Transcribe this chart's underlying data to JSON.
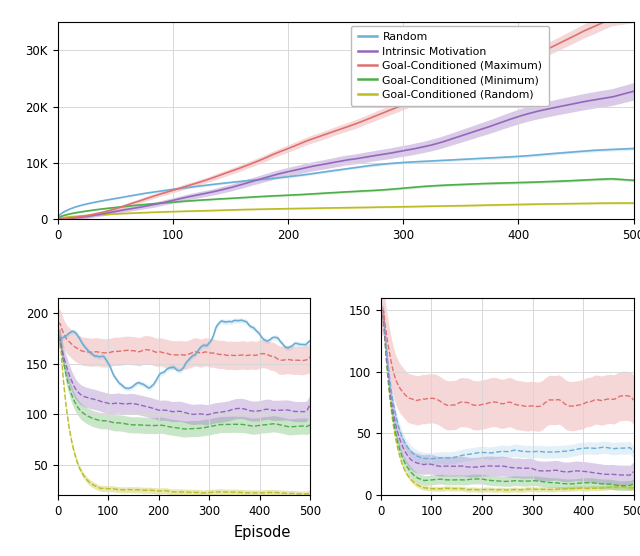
{
  "colors": {
    "random": "#6baed6",
    "intrinsic": "#9467bd",
    "gc_max": "#e07070",
    "gc_min": "#4daf4a",
    "gc_rand": "#bcbd22"
  },
  "legend_labels": [
    "Random",
    "Intrinsic Motivation",
    "Goal-Conditioned (Maximum)",
    "Goal-Conditioned (Minimum)",
    "Goal-Conditioned (Random)"
  ],
  "top_plot": {
    "xlim": [
      0,
      500
    ],
    "ylim": [
      0,
      35000
    ],
    "yticks": [
      0,
      10000,
      20000,
      30000
    ],
    "yticklabels": [
      "0",
      "10K",
      "20K",
      "30K"
    ]
  },
  "bottom_left": {
    "xlim": [
      0,
      500
    ],
    "ylim": [
      20,
      215
    ],
    "yticks": [
      50,
      100,
      150,
      200
    ]
  },
  "bottom_right": {
    "xlim": [
      0,
      500
    ],
    "ylim": [
      0,
      160
    ],
    "yticks": [
      0,
      50,
      100,
      150
    ]
  },
  "xlabel": "Episode",
  "background": "#ffffff",
  "grid_color": "#d8d8d8"
}
